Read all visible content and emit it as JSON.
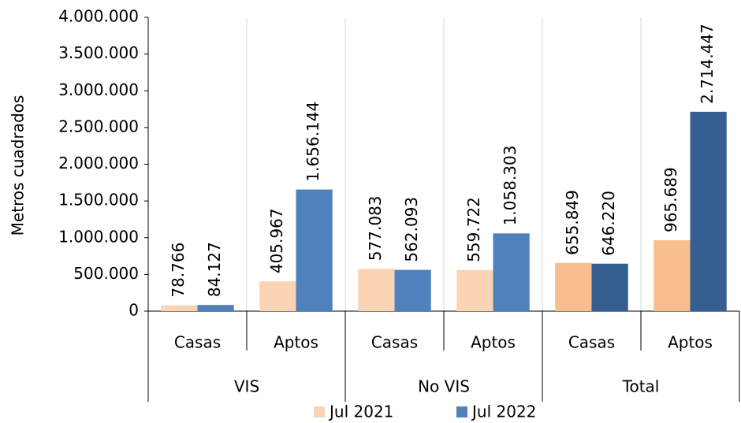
{
  "chart_data": {
    "type": "bar",
    "y_label": "Metros cuadrados",
    "categories": [
      "Casas",
      "Aptos",
      "Casas",
      "Aptos",
      "Casas",
      "Aptos"
    ],
    "groups": [
      "VIS",
      "No VIS",
      "Total"
    ],
    "series": [
      {
        "name": "Jul 2021",
        "color": "#FBD3B5",
        "colors": [
          "#FBD3B5",
          "#FBD3B5",
          "#FBD3B5",
          "#FBD3B5",
          "#F8BE8C",
          "#F8BE8C"
        ],
        "values": [
          78766,
          405967,
          577083,
          559722,
          655849,
          965689
        ],
        "value_labels": [
          "78.766",
          "405.967",
          "577.083",
          "559.722",
          "655.849",
          "965.689"
        ]
      },
      {
        "name": "Jul 2022",
        "color": "#4F81BD",
        "colors": [
          "#4F81BD",
          "#4F81BD",
          "#4F81BD",
          "#4F81BD",
          "#355F91",
          "#355F91"
        ],
        "values": [
          84127,
          1656144,
          562093,
          1058303,
          646220,
          2714447
        ],
        "value_labels": [
          "84.127",
          "1.656.144",
          "562.093",
          "1.058.303",
          "646.220",
          "2.714.447"
        ]
      }
    ],
    "ylim": [
      0,
      4000000
    ],
    "yticks": [
      0,
      {
        "value": 500000,
        "label": "500.000"
      },
      {
        "value": 1000000,
        "label": "1.000.000"
      },
      {
        "value": 1500000,
        "label": "1.500.000"
      },
      {
        "value": 2000000,
        "label": "2.000.000"
      },
      {
        "value": 2500000,
        "label": "2.500.000"
      },
      {
        "value": 3000000,
        "label": "3.000.000"
      },
      {
        "value": 3500000,
        "label": "3.500.000"
      },
      {
        "value": 4000000,
        "label": "4.000.000"
      }
    ],
    "legend": "bottom"
  }
}
